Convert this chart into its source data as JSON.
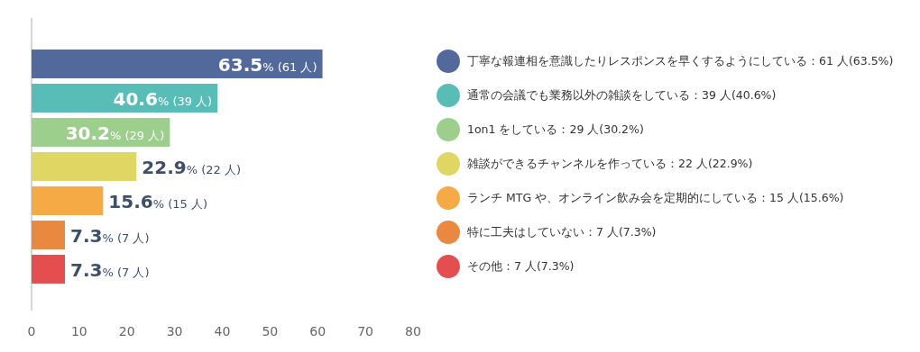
{
  "chart_data": {
    "type": "bar",
    "orientation": "horizontal",
    "categories": [
      "丁寧な報連相を意識したりレスポンスを早くするようにしている：61 人(63.5%)",
      "通常の会議でも業務以外の雑談をしている：39 人(40.6%)",
      "1on1 をしている：29 人(30.2%)",
      "雑談ができるチャンネルを作っている：22 人(22.9%)",
      "ランチ MTG や、オンライン飲み会を定期的にしている：15 人(15.6%)",
      "特に工夫はしていない：7 人(7.3%)",
      "その他：7 人(7.3%)"
    ],
    "values": [
      61,
      39,
      29,
      22,
      15,
      7,
      7
    ],
    "colors": [
      "#52699b",
      "#58bdb7",
      "#9dcf8c",
      "#dfd663",
      "#f5aa45",
      "#e9883f",
      "#e54e4e"
    ],
    "value_labels": [
      "63.5% (61 人)",
      "40.6% (39 人)",
      "30.2% (29 人)",
      "22.9% (22 人)",
      "15.6% (15 人)",
      "7.3% (7 人)",
      "7.3% (7 人)"
    ],
    "xlim": [
      0,
      80
    ],
    "xticks": [
      0,
      10,
      20,
      30,
      40,
      50,
      60,
      70,
      80
    ],
    "tick_labels": "x"
  }
}
